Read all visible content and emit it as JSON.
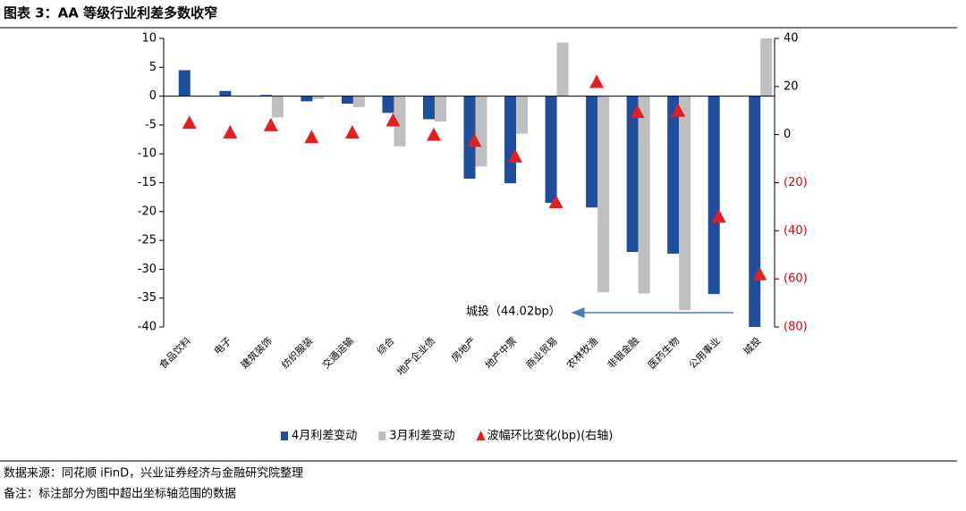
{
  "chart_data": {
    "type": "bar",
    "title": "图表 3：AA 等级行业利差多数收窄",
    "categories": [
      "食品饮料",
      "电子",
      "建筑装饰",
      "纺织服装",
      "交通运输",
      "综合",
      "地产企业债",
      "房地产",
      "地产中票",
      "商业贸易",
      "农林牧渔",
      "非银金融",
      "医药生物",
      "公用事业",
      "城投"
    ],
    "series": [
      {
        "name": "4月利差变动",
        "color": "#1f4e9c",
        "values": [
          4.5,
          0.9,
          0.2,
          -0.9,
          -1.3,
          -2.9,
          -4.0,
          -14.3,
          -15.1,
          -18.5,
          -19.3,
          -27.0,
          -27.3,
          -34.3,
          -44.02
        ]
      },
      {
        "name": "3月利差变动",
        "color": "#bfbfbf",
        "values": [
          0,
          0,
          -3.7,
          -0.5,
          -1.9,
          -8.7,
          -4.4,
          -12.2,
          -6.5,
          9.3,
          -34.0,
          -34.2,
          -37.1,
          0,
          10
        ]
      },
      {
        "name": "波幅环比变化(bp)(右轴)",
        "color": "#e02020",
        "axis": "y2",
        "values": [
          5,
          1,
          4,
          -1,
          1,
          6,
          0,
          -2.5,
          -9,
          -28,
          22,
          9.5,
          10,
          -34,
          -58
        ]
      }
    ],
    "ylim": [
      -40,
      10
    ],
    "yticks": [
      -40,
      -35,
      -30,
      -25,
      -20,
      -15,
      -10,
      -5,
      0,
      5,
      10
    ],
    "y2lim": [
      -80,
      40
    ],
    "y2ticks": [
      {
        "value": -80,
        "label": "(80)"
      },
      {
        "value": -60,
        "label": "(60)"
      },
      {
        "value": -40,
        "label": "(40)"
      },
      {
        "value": -20,
        "label": "(20)"
      },
      0,
      20,
      40
    ],
    "annotation": "城投（44.02bp）",
    "source": "数据来源：同花顺 iFinD，兴业证券经济与金融研究院整理",
    "note": "备注：标注部分为图中超出坐标轴范围的数据"
  }
}
